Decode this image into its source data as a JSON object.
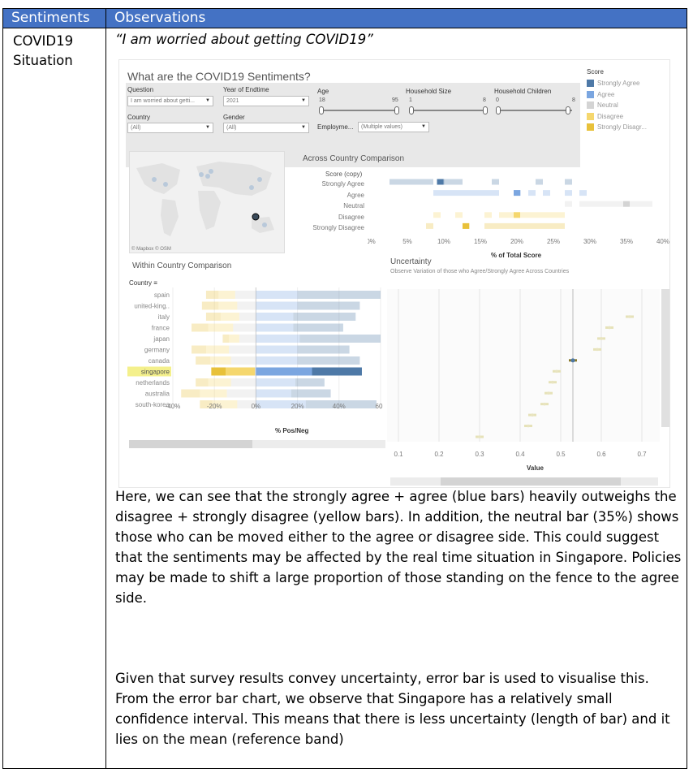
{
  "table": {
    "headers": [
      "Sentiments",
      "Observations"
    ],
    "row_label_line1": "COVID19",
    "row_label_line2": "Situation",
    "quote": "“I am worried about getting COVID19”",
    "paragraph1": "Here, we can see that the strongly agree + agree (blue bars) heavily outweighs the disagree + strongly disagree (yellow bars). In addition, the neutral bar (35%) shows those who can be moved either to the agree or disagree side. This could suggest that the sentiments may be affected by the real time situation in Singapore. Policies may be made to shift a large proportion of those standing on the fence to the agree side.",
    "paragraph2": "Given that survey results convey uncertainty, error bar is used to visualise this. From the error bar chart, we observe that Singapore has a relatively small confidence interval. This means that there is less uncertainty (length of bar) and it lies on the mean (reference band)"
  },
  "dashboard": {
    "title": "What are the COVID19 Sentiments?",
    "filters": {
      "question_label": "Question",
      "question_value": "I am worried about getti...",
      "year_label": "Year of Endtime",
      "year_value": "2021",
      "age_label": "Age",
      "age_min": "18",
      "age_max": "95",
      "household_size_label": "Household Size",
      "household_size_min": "1",
      "household_size_max": "8",
      "household_children_label": "Household Children",
      "household_children_min": "0",
      "household_children_max": "8",
      "country_label": "Country",
      "country_value": "(All)",
      "gender_label": "Gender",
      "gender_value": "(All)",
      "employment_label": "Employme...",
      "employment_value": "(Multiple values)"
    },
    "legend": {
      "title": "Score",
      "items": [
        {
          "label": "Strongly Agree",
          "color": "#4e79a7"
        },
        {
          "label": "Agree",
          "color": "#7ba6e0"
        },
        {
          "label": "Neutral",
          "color": "#d4d4d4"
        },
        {
          "label": "Disagree",
          "color": "#f5d76e"
        },
        {
          "label": "Strongly Disagr...",
          "color": "#e8c13a"
        }
      ]
    },
    "map_credit": "© Mapbox © OSM",
    "colors": {
      "strongly_agree": "#4e79a7",
      "agree": "#7ba6e0",
      "neutral": "#d4d4d4",
      "disagree": "#f5d76e",
      "strongly_disagree": "#e8c13a"
    }
  },
  "chart_data": [
    {
      "type": "scatter",
      "title": "Across Country Comparison",
      "legend_title": "Score (copy)",
      "categories": [
        "Strongly Agree",
        "Agree",
        "Neutral",
        "Disagree",
        "Strongly Disagree"
      ],
      "xlabel": "% of Total Score",
      "xticks": [
        "0%",
        "5%",
        "10%",
        "15%",
        "20%",
        "25%",
        "30%",
        "35%",
        "40%"
      ],
      "xlim": [
        0,
        40
      ],
      "series": [
        {
          "category": "Strongly Agree",
          "values": [
            3,
            4,
            5,
            6,
            7,
            8,
            9.5,
            10,
            11,
            12,
            17,
            23,
            27
          ],
          "highlight": 9.5
        },
        {
          "category": "Agree",
          "values": [
            9,
            10,
            11,
            12,
            13,
            14,
            15,
            16,
            17,
            20,
            22,
            24,
            27,
            29
          ],
          "highlight": 20
        },
        {
          "category": "Neutral",
          "values": [
            27,
            29,
            30,
            31,
            32,
            33,
            34,
            35,
            36,
            37,
            38
          ],
          "highlight": 35
        },
        {
          "category": "Disagree",
          "values": [
            9,
            12,
            16,
            18,
            19,
            20,
            21,
            22,
            23,
            24,
            25,
            26
          ],
          "highlight": 20
        },
        {
          "category": "Strongly Disagree",
          "values": [
            8,
            13,
            16,
            17,
            18,
            19,
            20,
            21,
            22,
            23,
            24,
            25,
            26
          ],
          "highlight": 13
        }
      ]
    },
    {
      "type": "bar",
      "title": "Within Country Comparison",
      "axis_header": "Country",
      "xlabel": "% Pos/Neg",
      "xticks": [
        "-40%",
        "-20%",
        "0%",
        "20%",
        "40%",
        "60"
      ],
      "xlim": [
        -40,
        60
      ],
      "categories": [
        "spain",
        "united-king..",
        "italy",
        "france",
        "japan",
        "germany",
        "canada",
        "singapore",
        "netherlands",
        "australia",
        "south-korea"
      ],
      "highlight_category": "singapore",
      "series": [
        {
          "name": "Strongly Disagree",
          "values": [
            -6,
            -8,
            -7,
            -8,
            -3,
            -7,
            -7,
            -7,
            -6,
            -9,
            -6
          ]
        },
        {
          "name": "Disagree",
          "values": [
            -8,
            -9,
            -9,
            -12,
            -5,
            -11,
            -10,
            -14,
            -11,
            -13,
            -12
          ]
        },
        {
          "name": "Neutral",
          "values": [
            -10,
            -9,
            -8,
            -11,
            -8,
            -13,
            -12,
            -0.5,
            -12,
            -14,
            -9
          ]
        },
        {
          "name": "Agree",
          "values": [
            20,
            20,
            18,
            18,
            21,
            20,
            20,
            27,
            19,
            17,
            24
          ]
        },
        {
          "name": "Strongly Agree",
          "values": [
            40,
            30,
            30,
            24,
            40,
            25,
            30,
            24,
            14,
            19,
            34
          ]
        }
      ]
    },
    {
      "type": "scatter",
      "title": "Uncertainty",
      "subtitle": "Observe Variation of those who Agree/Strongly Agree Across Countries",
      "xlabel": "Value",
      "xticks": [
        "0.1",
        "0.2",
        "0.3",
        "0.4",
        "0.5",
        "0.6",
        "0.7"
      ],
      "xlim": [
        0.08,
        0.74
      ],
      "reference_line": 0.53,
      "points": [
        {
          "value": 0.67,
          "err": 0.01
        },
        {
          "value": 0.62,
          "err": 0.01
        },
        {
          "value": 0.6,
          "err": 0.01
        },
        {
          "value": 0.59,
          "err": 0.01
        },
        {
          "value": 0.53,
          "err": 0.01,
          "highlight": true
        },
        {
          "value": 0.49,
          "err": 0.01
        },
        {
          "value": 0.48,
          "err": 0.01
        },
        {
          "value": 0.47,
          "err": 0.01
        },
        {
          "value": 0.46,
          "err": 0.01
        },
        {
          "value": 0.43,
          "err": 0.01
        },
        {
          "value": 0.42,
          "err": 0.01
        },
        {
          "value": 0.3,
          "err": 0.01
        }
      ]
    }
  ]
}
